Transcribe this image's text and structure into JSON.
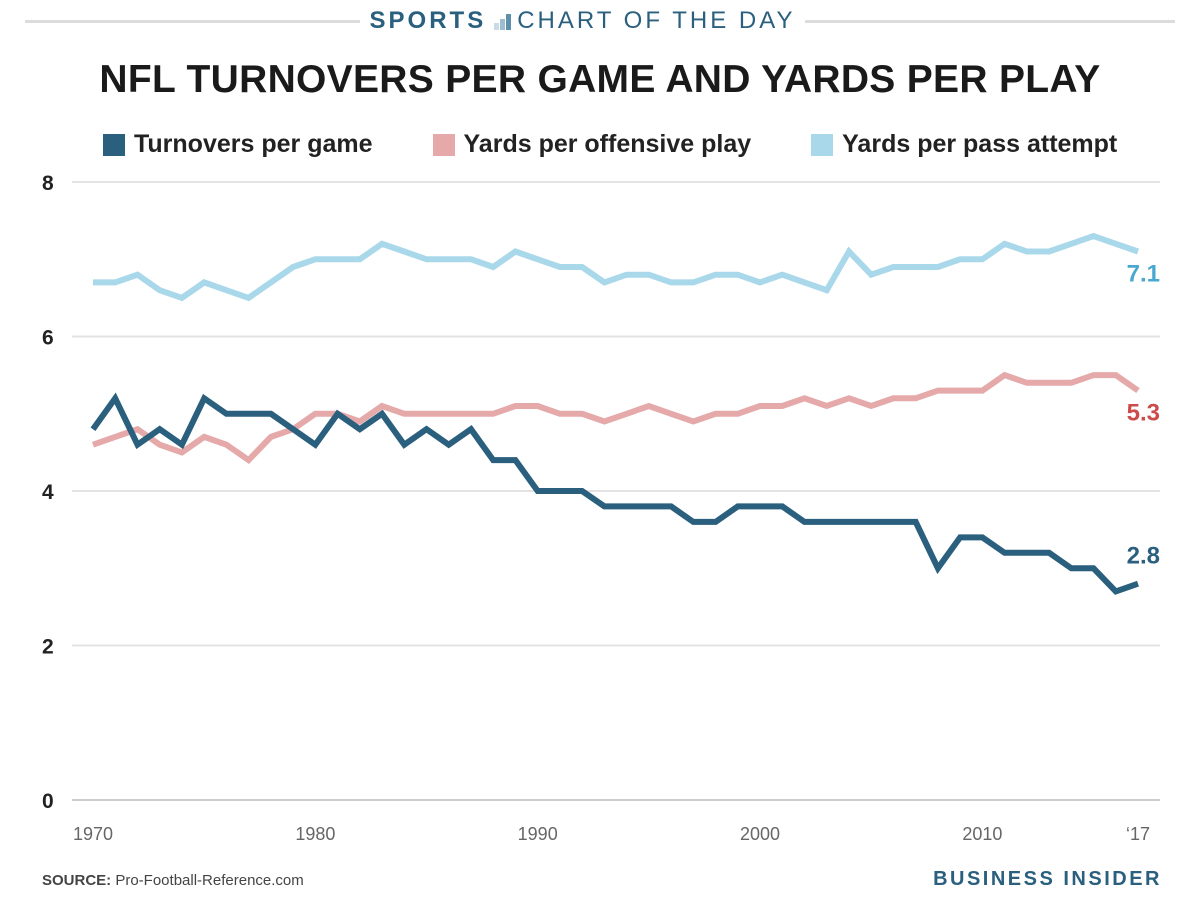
{
  "header": {
    "kicker_bold": "SPORTS",
    "kicker_rest": "CHART OF THE DAY",
    "title": "NFL TURNOVERS PER GAME AND YARDS PER PLAY"
  },
  "footer": {
    "source_label": "SOURCE:",
    "source_text": "Pro-Football-Reference.com",
    "brand": "BUSINESS INSIDER"
  },
  "chart_data": {
    "type": "line",
    "title": "NFL TURNOVERS PER GAME AND YARDS PER PLAY",
    "xlabel": "",
    "ylabel": "",
    "x_range": [
      1970,
      2017
    ],
    "ylim": [
      0,
      8
    ],
    "y_ticks": [
      0,
      2,
      4,
      6,
      8
    ],
    "x_ticks": [
      {
        "value": 1970,
        "label": "1970"
      },
      {
        "value": 1980,
        "label": "1980"
      },
      {
        "value": 1990,
        "label": "1990"
      },
      {
        "value": 2000,
        "label": "2000"
      },
      {
        "value": 2010,
        "label": "2010"
      },
      {
        "value": 2017,
        "label": "‘17"
      }
    ],
    "grid": true,
    "legend_position": "top",
    "x": [
      1970,
      1971,
      1972,
      1973,
      1974,
      1975,
      1976,
      1977,
      1978,
      1979,
      1980,
      1981,
      1982,
      1983,
      1984,
      1985,
      1986,
      1987,
      1988,
      1989,
      1990,
      1991,
      1992,
      1993,
      1994,
      1995,
      1996,
      1997,
      1998,
      1999,
      2000,
      2001,
      2002,
      2003,
      2004,
      2005,
      2006,
      2007,
      2008,
      2009,
      2010,
      2011,
      2012,
      2013,
      2014,
      2015,
      2016,
      2017
    ],
    "series": [
      {
        "name": "Turnovers per game",
        "color": "#2a5f7e",
        "end_label": "2.8",
        "end_label_color": "#2a5f7e",
        "values": [
          4.8,
          5.2,
          4.6,
          4.8,
          4.6,
          5.2,
          5.0,
          5.0,
          5.0,
          4.8,
          4.6,
          5.0,
          4.8,
          5.0,
          4.6,
          4.8,
          4.6,
          4.8,
          4.4,
          4.4,
          4.0,
          4.0,
          4.0,
          3.8,
          3.8,
          3.8,
          3.8,
          3.6,
          3.6,
          3.8,
          3.8,
          3.8,
          3.6,
          3.6,
          3.6,
          3.6,
          3.6,
          3.6,
          3.0,
          3.4,
          3.4,
          3.2,
          3.2,
          3.2,
          3.0,
          3.0,
          2.7,
          2.8
        ]
      },
      {
        "name": "Yards per offensive play",
        "color": "#e5a9a9",
        "end_label": "5.3",
        "end_label_color": "#cc4b4b",
        "values": [
          4.6,
          4.7,
          4.8,
          4.6,
          4.5,
          4.7,
          4.6,
          4.4,
          4.7,
          4.8,
          5.0,
          5.0,
          4.9,
          5.1,
          5.0,
          5.0,
          5.0,
          5.0,
          5.0,
          5.1,
          5.1,
          5.0,
          5.0,
          4.9,
          5.0,
          5.1,
          5.0,
          4.9,
          5.0,
          5.0,
          5.1,
          5.1,
          5.2,
          5.1,
          5.2,
          5.1,
          5.2,
          5.2,
          5.3,
          5.3,
          5.3,
          5.5,
          5.4,
          5.4,
          5.4,
          5.5,
          5.5,
          5.3
        ]
      },
      {
        "name": "Yards per pass attempt",
        "color": "#a8d8ea",
        "end_label": "7.1",
        "end_label_color": "#4aa8d0",
        "values": [
          6.7,
          6.7,
          6.8,
          6.6,
          6.5,
          6.7,
          6.6,
          6.5,
          6.7,
          6.9,
          7.0,
          7.0,
          7.0,
          7.2,
          7.1,
          7.0,
          7.0,
          7.0,
          6.9,
          7.1,
          7.0,
          6.9,
          6.9,
          6.7,
          6.8,
          6.8,
          6.7,
          6.7,
          6.8,
          6.8,
          6.7,
          6.8,
          6.7,
          6.6,
          7.1,
          6.8,
          6.9,
          6.9,
          6.9,
          7.0,
          7.0,
          7.2,
          7.1,
          7.1,
          7.2,
          7.3,
          7.2,
          7.1
        ]
      }
    ]
  },
  "colors": {
    "brand": "#2a5f7e",
    "grid": "#e3e3e3",
    "axis": "#cccccc",
    "tick_text": "#666666"
  }
}
